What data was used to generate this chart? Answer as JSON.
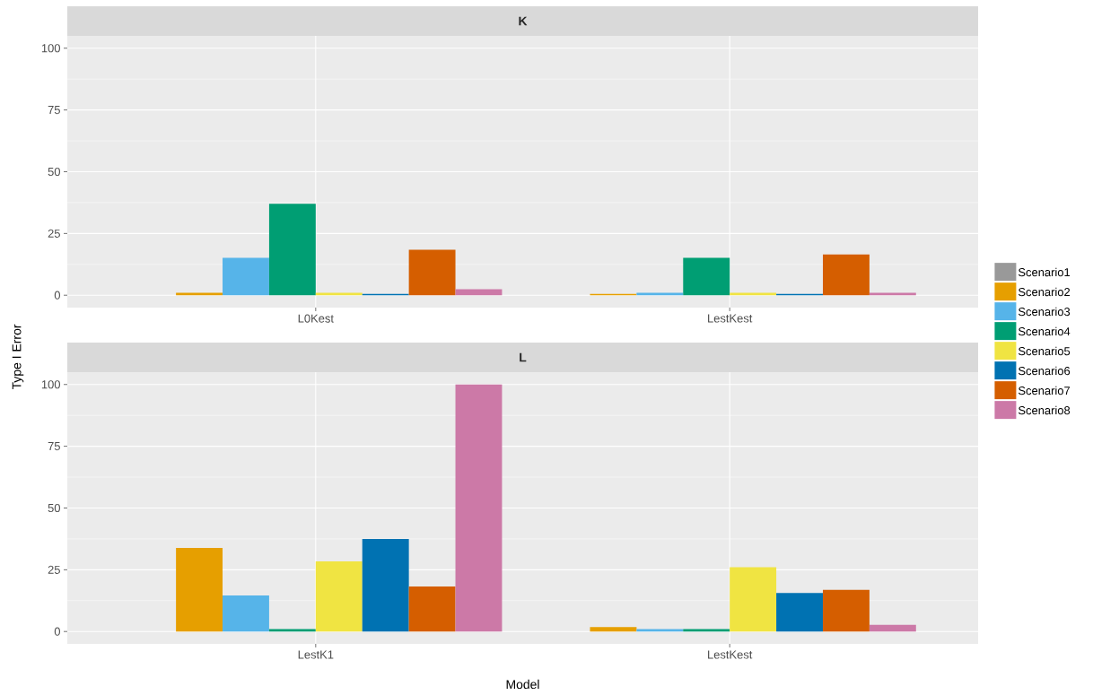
{
  "chart_data": [
    {
      "type": "bar",
      "title": "K",
      "ylabel": "Type I Error",
      "categories": [
        "L0Kest",
        "LestKest"
      ],
      "ylim": [
        -5,
        105
      ],
      "yticks": [
        0,
        25,
        50,
        75,
        100
      ],
      "grid": true,
      "series": [
        {
          "color": "#999999",
          "values": [
            0,
            0
          ]
        },
        {
          "color": "#E69F00",
          "values": [
            1,
            0.5
          ]
        },
        {
          "color": "#56B4E9",
          "values": [
            15.1,
            1
          ]
        },
        {
          "color": "#009E73",
          "values": [
            37,
            15.1
          ]
        },
        {
          "color": "#F0E442",
          "values": [
            1,
            1
          ]
        },
        {
          "color": "#0072B2",
          "values": [
            0.5,
            0.5
          ]
        },
        {
          "color": "#D55E00",
          "values": [
            18.4,
            16.5
          ]
        },
        {
          "color": "#CC79A7",
          "values": [
            2.4,
            1
          ]
        }
      ]
    },
    {
      "type": "bar",
      "title": "L",
      "xlabel": "Model",
      "categories": [
        "LestK1",
        "LestKest"
      ],
      "ylim": [
        -5,
        105
      ],
      "yticks": [
        0,
        25,
        50,
        75,
        100
      ],
      "grid": true,
      "legend": "right",
      "series": [
        {
          "name": "Scenario1",
          "color": "#999999",
          "values": [
            0,
            0
          ]
        },
        {
          "name": "Scenario2",
          "color": "#E69F00",
          "values": [
            33.8,
            1.8
          ]
        },
        {
          "name": "Scenario3",
          "color": "#56B4E9",
          "values": [
            14.6,
            1
          ]
        },
        {
          "name": "Scenario4",
          "color": "#009E73",
          "values": [
            1,
            1
          ]
        },
        {
          "name": "Scenario5",
          "color": "#F0E442",
          "values": [
            28.4,
            26
          ]
        },
        {
          "name": "Scenario6",
          "color": "#0072B2",
          "values": [
            37.5,
            15.6
          ]
        },
        {
          "name": "Scenario7",
          "color": "#D55E00",
          "values": [
            18.2,
            16.9
          ]
        },
        {
          "name": "Scenario8",
          "color": "#CC79A7",
          "values": [
            100,
            2.7
          ]
        }
      ]
    }
  ]
}
